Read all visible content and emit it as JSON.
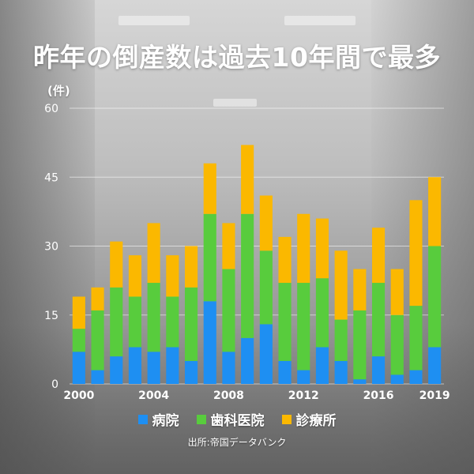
{
  "header": {
    "title": "昨年の倒産数は過去10年間で最多",
    "unit_label": "(件)"
  },
  "legend": {
    "items": [
      {
        "label": "病院",
        "color": "#1e8ff2"
      },
      {
        "label": "歯科医院",
        "color": "#58cc3d"
      },
      {
        "label": "診療所",
        "color": "#fbb800"
      }
    ]
  },
  "source": "出所:帝国データバンク",
  "chart_data": {
    "type": "bar",
    "stacked": true,
    "categories": [
      "2000",
      "2001",
      "2002",
      "2003",
      "2004",
      "2005",
      "2006",
      "2007",
      "2008",
      "2009",
      "2010",
      "2011",
      "2012",
      "2013",
      "2014",
      "2015",
      "2016",
      "2017",
      "2018",
      "2019"
    ],
    "x_tick_labels": [
      "2000",
      "2004",
      "2008",
      "2012",
      "2016",
      "2019"
    ],
    "series": [
      {
        "name": "病院",
        "color": "#1e8ff2",
        "values": [
          7,
          3,
          6,
          8,
          7,
          8,
          5,
          18,
          7,
          10,
          13,
          5,
          3,
          8,
          5,
          1,
          6,
          2,
          3,
          8
        ]
      },
      {
        "name": "歯科医院",
        "color": "#58cc3d",
        "values": [
          5,
          13,
          15,
          11,
          15,
          11,
          16,
          19,
          18,
          27,
          16,
          17,
          19,
          15,
          9,
          15,
          16,
          13,
          14,
          22
        ]
      },
      {
        "name": "診療所",
        "color": "#fbb800",
        "values": [
          7,
          5,
          10,
          9,
          13,
          9,
          9,
          11,
          10,
          15,
          12,
          10,
          15,
          13,
          15,
          9,
          12,
          10,
          23,
          15
        ]
      }
    ],
    "y_ticks": [
      0,
      15,
      30,
      45,
      60
    ],
    "ylim": [
      0,
      60
    ],
    "grid": true,
    "legend_position": "bottom"
  }
}
